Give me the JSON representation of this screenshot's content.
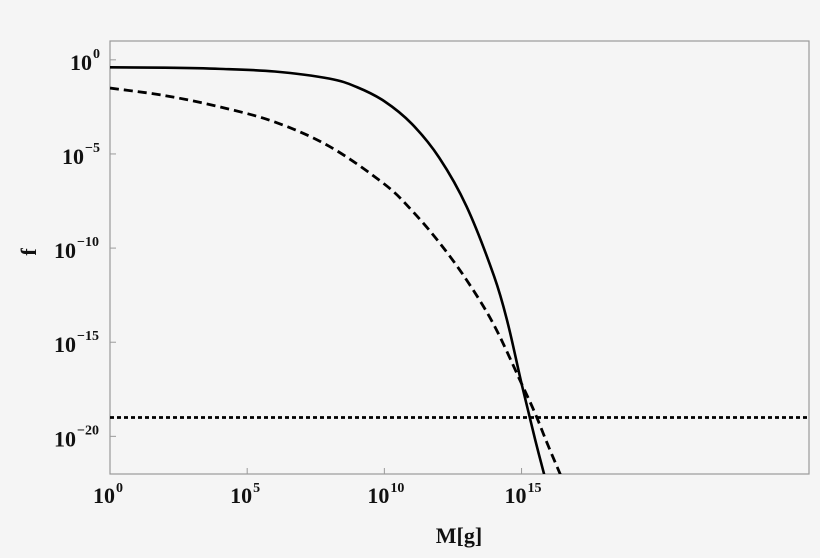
{
  "chart_data": {
    "type": "line",
    "title": "",
    "xlabel": "M[g]",
    "ylabel": "f",
    "xscale": "log",
    "yscale": "log",
    "xlim": [
      1,
      3e+25
    ],
    "ylim": [
      1e-22,
      10
    ],
    "grid": false,
    "legend": null,
    "x_ticks": [
      {
        "value": 1,
        "base": "10",
        "exp": "0"
      },
      {
        "value": 100000.0,
        "base": "10",
        "exp": "5"
      },
      {
        "value": 10000000000.0,
        "base": "10",
        "exp": "10"
      },
      {
        "value": 1000000000000000.0,
        "base": "10",
        "exp": "15"
      }
    ],
    "y_ticks": [
      {
        "value": 1,
        "base": "10",
        "exp": "0"
      },
      {
        "value": 1e-05,
        "base": "10",
        "exp": "−5"
      },
      {
        "value": 1e-10,
        "base": "10",
        "exp": "−10"
      },
      {
        "value": 1e-15,
        "base": "10",
        "exp": "−15"
      },
      {
        "value": 1e-20,
        "base": "10",
        "exp": "−20"
      }
    ],
    "series": [
      {
        "name": "solid",
        "style": "solid",
        "color": "#000000",
        "log10_x": [
          0,
          2,
          4,
          6,
          8,
          9,
          10,
          11,
          12,
          13,
          14,
          14.5,
          15,
          15.5,
          16,
          16.3
        ],
        "log10_y": [
          -0.4,
          -0.42,
          -0.48,
          -0.62,
          -1.0,
          -1.45,
          -2.2,
          -3.4,
          -5.2,
          -7.8,
          -11.5,
          -14.0,
          -17.2,
          -20.2,
          -23.0,
          -24.8
        ]
      },
      {
        "name": "dashed",
        "style": "dashed",
        "color": "#000000",
        "log10_x": [
          0,
          2,
          4,
          6,
          8,
          10,
          11,
          12,
          13,
          14,
          15,
          15.5,
          16,
          16.7
        ],
        "log10_y": [
          -1.5,
          -1.9,
          -2.5,
          -3.3,
          -4.6,
          -6.6,
          -8.0,
          -9.7,
          -11.7,
          -14.1,
          -17.2,
          -18.8,
          -20.6,
          -23.0
        ]
      },
      {
        "name": "dotted",
        "style": "dotted",
        "color": "#000000",
        "log10_x": [
          0,
          25.5
        ],
        "log10_y": [
          -19.0,
          -19.0
        ]
      }
    ]
  },
  "layout": {
    "background": "#f5f5f5",
    "frame_color": "#9a9a9a",
    "line_color": "#000000"
  }
}
